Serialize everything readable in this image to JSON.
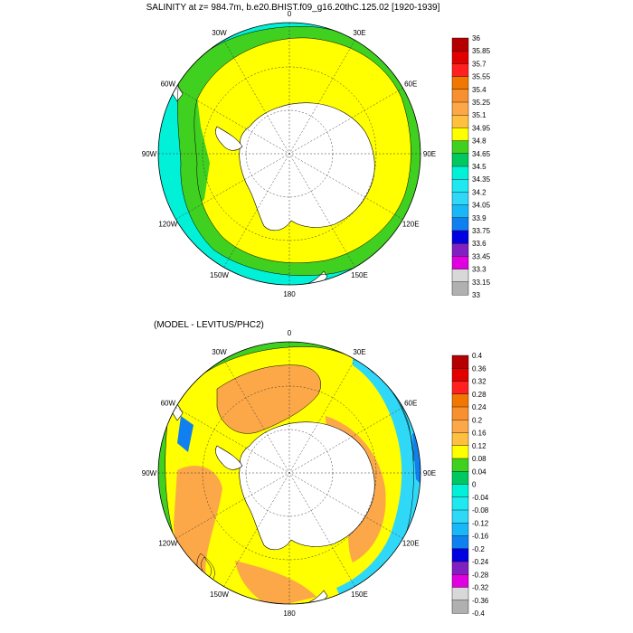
{
  "titles": {
    "top": "SALINITY at z= 984.7m, b.e20.BHIST.f09_g16.20thC.125.02 [1920-1939]",
    "bottom": "(MODEL - LEVITUS/PHC2)"
  },
  "longitude_labels": [
    "0",
    "30E",
    "60E",
    "90E",
    "120E",
    "150E",
    "180",
    "150W",
    "120W",
    "90W",
    "60W",
    "30W"
  ],
  "colorbars": {
    "top": {
      "labels": [
        "36",
        "35.85",
        "35.7",
        "35.55",
        "35.4",
        "35.25",
        "35.1",
        "34.95",
        "34.8",
        "34.65",
        "34.5",
        "34.35",
        "34.2",
        "34.05",
        "33.9",
        "33.75",
        "33.6",
        "33.45",
        "33.3",
        "33.15",
        "33"
      ],
      "colors": [
        "#b40000",
        "#e00000",
        "#ff2020",
        "#f07800",
        "#f89030",
        "#fca848",
        "#ffc040",
        "#ffff00",
        "#40d020",
        "#00c860",
        "#00f0d8",
        "#20e8f0",
        "#30d8f8",
        "#18b8f8",
        "#1080f0",
        "#0000e0",
        "#8020c0",
        "#e000e0",
        "#d8d8d8",
        "#b0b0b0"
      ]
    },
    "bottom": {
      "labels": [
        "0.4",
        "0.36",
        "0.32",
        "0.28",
        "0.24",
        "0.2",
        "0.16",
        "0.12",
        "0.08",
        "0.04",
        "0",
        "-0.04",
        "-0.08",
        "-0.12",
        "-0.16",
        "-0.2",
        "-0.24",
        "-0.28",
        "-0.32",
        "-0.36",
        "-0.4"
      ],
      "colors": [
        "#b40000",
        "#e00000",
        "#ff2020",
        "#f07800",
        "#f89030",
        "#fca848",
        "#ffc040",
        "#ffff00",
        "#40d020",
        "#00c860",
        "#00f0d8",
        "#20e8f0",
        "#30d8f8",
        "#18b8f8",
        "#1080f0",
        "#0000e0",
        "#8020c0",
        "#e000e0",
        "#d8d8d8",
        "#b0b0b0"
      ]
    }
  },
  "map_colors": {
    "land": "#ffffff",
    "ocean_high": "#ffff00",
    "ocean_mid": "#40d020",
    "ocean_low": "#00f0d8",
    "diff_positive": "#fca848",
    "diff_small_positive": "#ffff00",
    "diff_zero": "#40d020",
    "diff_negative": "#30d8f8"
  }
}
